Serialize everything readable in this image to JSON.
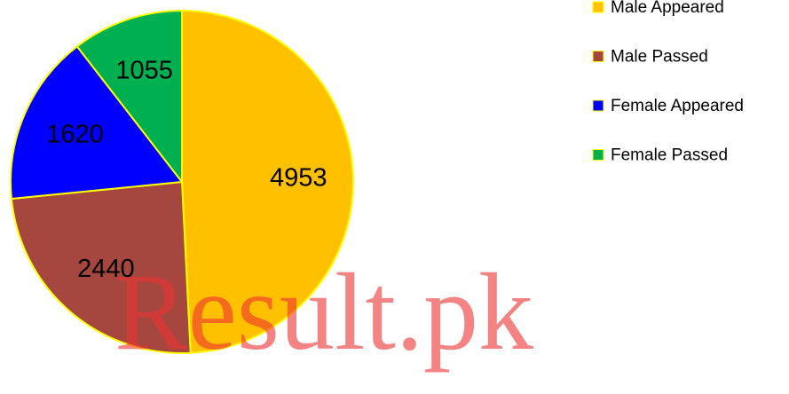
{
  "chart_data": {
    "type": "pie",
    "categories": [
      "Male Appeared",
      "Male Passed",
      "Female Appeared",
      "Female Passed"
    ],
    "values": [
      4953,
      2440,
      1620,
      1055
    ],
    "colors": [
      "#ffc000",
      "#a5463f",
      "#0000ff",
      "#00b050"
    ],
    "legend": "right",
    "watermark": "Result.pk"
  }
}
